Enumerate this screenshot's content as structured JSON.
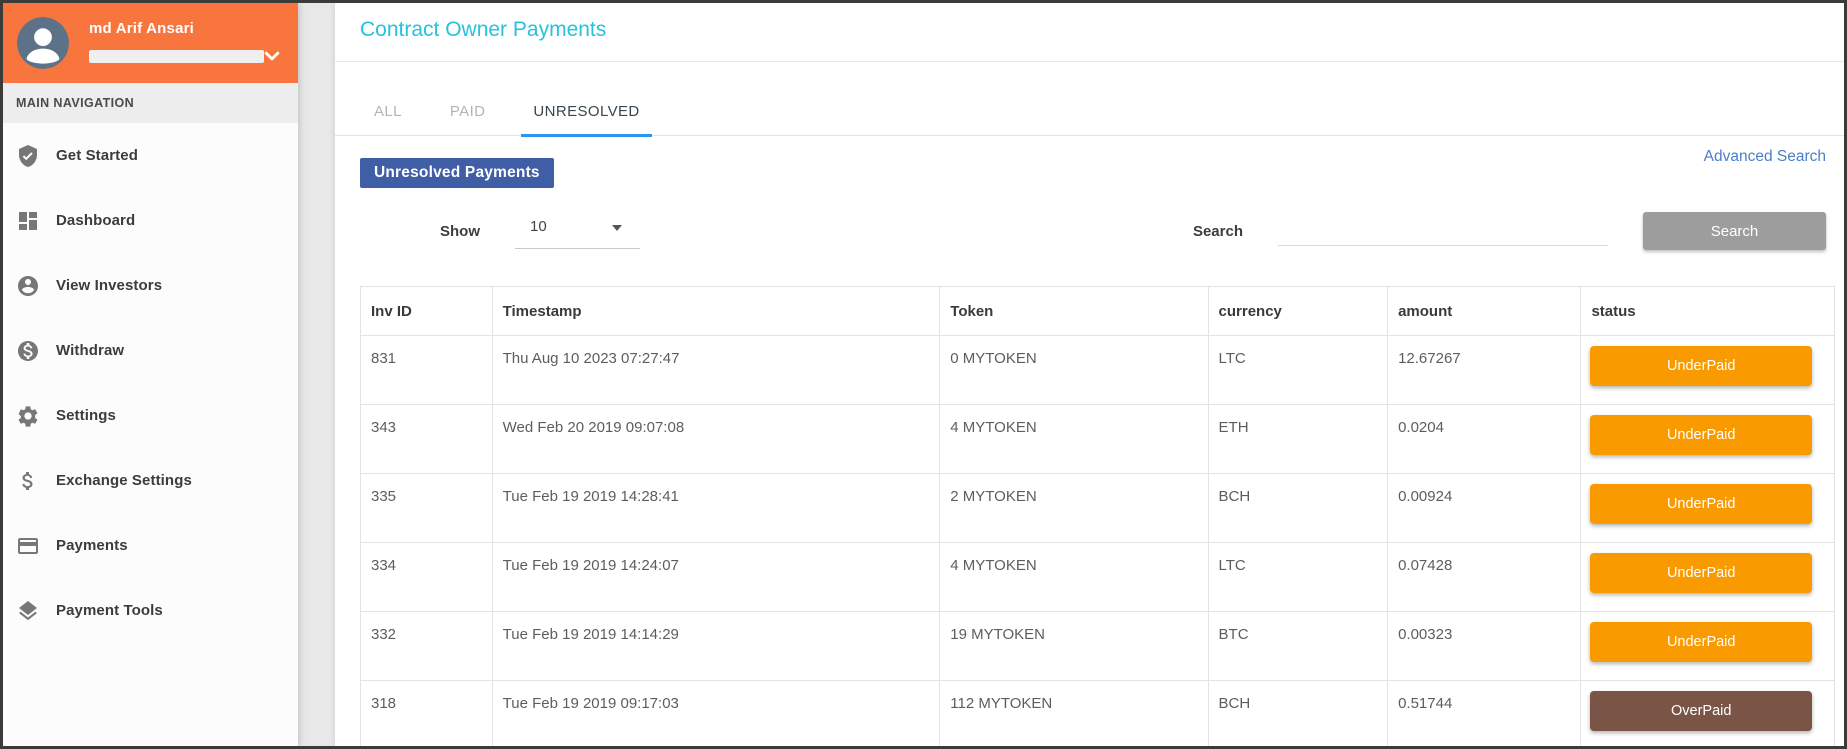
{
  "user": {
    "name": "md Arif Ansari"
  },
  "sidebar": {
    "section_label": "MAIN NAVIGATION",
    "items": [
      {
        "label": "Get Started",
        "icon": "shield-check-icon"
      },
      {
        "label": "Dashboard",
        "icon": "dashboard-icon"
      },
      {
        "label": "View Investors",
        "icon": "person-circle-icon"
      },
      {
        "label": "Withdraw",
        "icon": "dollar-circle-icon"
      },
      {
        "label": "Settings",
        "icon": "gear-icon"
      },
      {
        "label": "Exchange Settings",
        "icon": "dollar-icon"
      },
      {
        "label": "Payments",
        "icon": "credit-card-icon"
      },
      {
        "label": "Payment Tools",
        "icon": "layers-icon"
      }
    ]
  },
  "header": {
    "title": "Contract Owner Payments"
  },
  "tabs": [
    {
      "label": "ALL",
      "active": false
    },
    {
      "label": "PAID",
      "active": false
    },
    {
      "label": "UNRESOLVED",
      "active": true
    }
  ],
  "advanced_search_label": "Advanced Search",
  "section_badge": "Unresolved Payments",
  "controls": {
    "show_label": "Show",
    "show_value": "10",
    "search_label": "Search",
    "search_value": "",
    "search_button_label": "Search"
  },
  "table": {
    "columns": [
      "Inv ID",
      "Timestamp",
      "Token",
      "currency",
      "amount",
      "status"
    ],
    "rows": [
      {
        "inv_id": "831",
        "timestamp": "Thu Aug 10 2023 07:27:47",
        "token": "0 MYTOKEN",
        "currency": "LTC",
        "amount": "12.67267",
        "status": "UnderPaid"
      },
      {
        "inv_id": "343",
        "timestamp": "Wed Feb 20 2019 09:07:08",
        "token": "4 MYTOKEN",
        "currency": "ETH",
        "amount": "0.0204",
        "status": "UnderPaid"
      },
      {
        "inv_id": "335",
        "timestamp": "Tue Feb 19 2019 14:28:41",
        "token": "2 MYTOKEN",
        "currency": "BCH",
        "amount": "0.00924",
        "status": "UnderPaid"
      },
      {
        "inv_id": "334",
        "timestamp": "Tue Feb 19 2019 14:24:07",
        "token": "4 MYTOKEN",
        "currency": "LTC",
        "amount": "0.07428",
        "status": "UnderPaid"
      },
      {
        "inv_id": "332",
        "timestamp": "Tue Feb 19 2019 14:14:29",
        "token": "19 MYTOKEN",
        "currency": "BTC",
        "amount": "0.00323",
        "status": "UnderPaid"
      },
      {
        "inv_id": "318",
        "timestamp": "Tue Feb 19 2019 09:17:03",
        "token": "112 MYTOKEN",
        "currency": "BCH",
        "amount": "0.51744",
        "status": "OverPaid"
      }
    ]
  },
  "colors": {
    "sidebar_header": "#f8763d",
    "avatar_bg": "#5d7189",
    "title": "#27c2dc",
    "tab_active_underline": "#2b96f0",
    "badge": "#3f5ea6",
    "link": "#4a80c6",
    "search_button": "#9d9d9d",
    "status": {
      "UnderPaid": "#f99a00",
      "OverPaid": "#7a5547"
    }
  }
}
